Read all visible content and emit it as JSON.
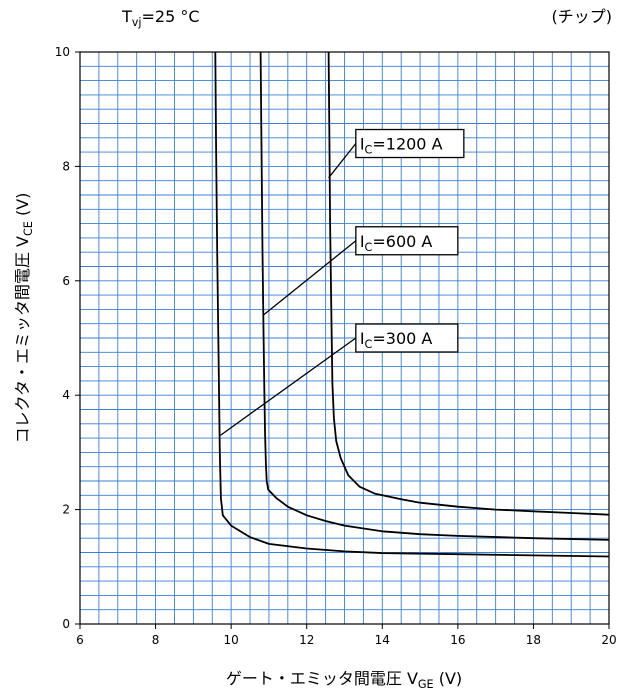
{
  "chart_data": {
    "type": "line",
    "header_left": "Tvj=25 °C",
    "header_right": "(チップ)",
    "xlabel": "ゲート・エミッタ間電圧 VGE (V)",
    "ylabel": "コレクタ・エミッタ間電圧 VCE (V)",
    "xlim": [
      6,
      20
    ],
    "ylim": [
      0,
      10
    ],
    "xticks": [
      6,
      8,
      10,
      12,
      14,
      16,
      18,
      20
    ],
    "yticks": [
      0,
      2,
      4,
      6,
      8,
      10
    ],
    "grid": true,
    "x_minor_step": 0.5,
    "y_minor_step": 0.25,
    "grid_color": "#3a7fd5",
    "series": [
      {
        "name": "IC=300 A",
        "points": [
          [
            9.58,
            10
          ],
          [
            9.6,
            8.5
          ],
          [
            9.63,
            6.5
          ],
          [
            9.67,
            4.5
          ],
          [
            9.7,
            3.0
          ],
          [
            9.73,
            2.2
          ],
          [
            9.78,
            1.9
          ],
          [
            10.0,
            1.72
          ],
          [
            10.5,
            1.52
          ],
          [
            11.0,
            1.4
          ],
          [
            12.0,
            1.32
          ],
          [
            13.0,
            1.27
          ],
          [
            14.0,
            1.24
          ],
          [
            16.0,
            1.22
          ],
          [
            18.0,
            1.2
          ],
          [
            20.0,
            1.18
          ]
        ]
      },
      {
        "name": "IC=600 A",
        "points": [
          [
            10.78,
            10
          ],
          [
            10.8,
            8.5
          ],
          [
            10.83,
            6.5
          ],
          [
            10.86,
            5.0
          ],
          [
            10.88,
            4.0
          ],
          [
            10.9,
            3.3
          ],
          [
            10.92,
            2.8
          ],
          [
            10.94,
            2.5
          ],
          [
            10.98,
            2.35
          ],
          [
            11.2,
            2.2
          ],
          [
            11.5,
            2.05
          ],
          [
            12.0,
            1.9
          ],
          [
            12.5,
            1.8
          ],
          [
            13.0,
            1.72
          ],
          [
            14.0,
            1.62
          ],
          [
            15.0,
            1.57
          ],
          [
            16.0,
            1.54
          ],
          [
            18.0,
            1.5
          ],
          [
            20.0,
            1.47
          ]
        ]
      },
      {
        "name": "IC=1200 A",
        "points": [
          [
            12.58,
            10
          ],
          [
            12.6,
            8.5
          ],
          [
            12.62,
            7.0
          ],
          [
            12.64,
            6.0
          ],
          [
            12.66,
            5.0
          ],
          [
            12.68,
            4.2
          ],
          [
            12.72,
            3.6
          ],
          [
            12.78,
            3.2
          ],
          [
            12.9,
            2.9
          ],
          [
            13.1,
            2.6
          ],
          [
            13.4,
            2.4
          ],
          [
            13.8,
            2.28
          ],
          [
            14.5,
            2.18
          ],
          [
            15.0,
            2.12
          ],
          [
            16.0,
            2.05
          ],
          [
            17.0,
            2.0
          ],
          [
            18.0,
            1.97
          ],
          [
            19.0,
            1.94
          ],
          [
            20.0,
            1.91
          ]
        ]
      }
    ],
    "annotations": [
      {
        "label": "IC=1200 A",
        "line_from": [
          12.58,
          7.8
        ],
        "line_to": [
          13.3,
          8.4
        ]
      },
      {
        "label": "IC=600 A",
        "line_from": [
          10.85,
          5.4
        ],
        "line_to": [
          13.3,
          6.7
        ]
      },
      {
        "label": "IC=300 A",
        "line_from": [
          9.72,
          3.3
        ],
        "line_to": [
          13.3,
          5.0
        ]
      }
    ]
  }
}
